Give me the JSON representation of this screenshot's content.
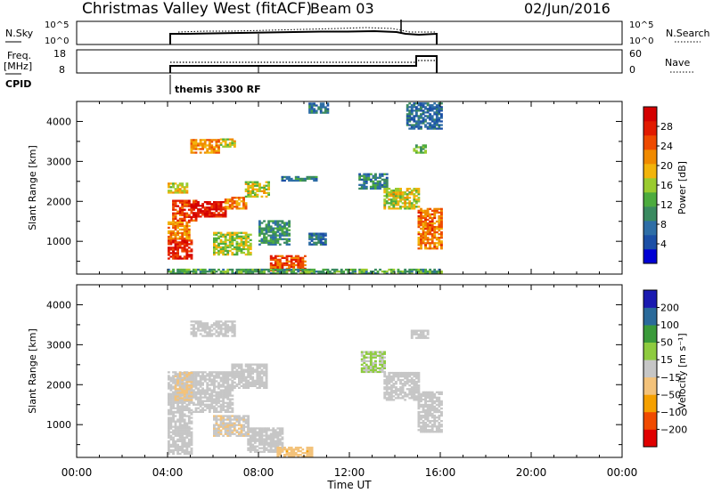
{
  "header": {
    "station": "Christmas Valley West (fitACF)",
    "beam": "Beam 03",
    "date": "02/Jun/2016"
  },
  "top_panels": {
    "nsky_label": "N.Sky",
    "nsky_ticks": [
      "10^5",
      "10^0"
    ],
    "nsearch_label": "N.Search",
    "nsearch_ticks": [
      "10^5",
      "10^0"
    ],
    "freq_label": "Freq.",
    "freq_unit": "[MHz]",
    "freq_ticks": [
      "18",
      "8"
    ],
    "nave_label": "Nave",
    "nave_ticks": [
      "60",
      "0"
    ],
    "cpid_label": "CPID",
    "cpid_value": "themis 3300 RF"
  },
  "chart_data": [
    {
      "type": "heatmap",
      "name": "power",
      "ylabel": "Slant Range [km]",
      "xlim": [
        0,
        24
      ],
      "ylim": [
        180,
        4500
      ],
      "yticks": [
        "4000",
        "3000",
        "2000",
        "1000"
      ],
      "colorbar": {
        "label": "Power [dB]",
        "ticks": [
          "28",
          "24",
          "20",
          "16",
          "12",
          "8",
          "4"
        ],
        "range": [
          0,
          32
        ]
      },
      "regions": [
        {
          "t0": 4.0,
          "t1": 5.0,
          "r0": 550,
          "r1": 1050,
          "v": 28
        },
        {
          "t0": 4.0,
          "t1": 4.9,
          "r0": 1050,
          "r1": 1500,
          "v": 22
        },
        {
          "t0": 4.2,
          "t1": 5.2,
          "r0": 1500,
          "r1": 2000,
          "v": 26
        },
        {
          "t0": 5.0,
          "t1": 6.5,
          "r0": 1600,
          "r1": 2000,
          "v": 29
        },
        {
          "t0": 6.5,
          "t1": 7.4,
          "r0": 1800,
          "r1": 2100,
          "v": 22
        },
        {
          "t0": 7.4,
          "t1": 8.4,
          "r0": 2100,
          "r1": 2500,
          "v": 17
        },
        {
          "t0": 4.0,
          "t1": 4.8,
          "r0": 2200,
          "r1": 2450,
          "v": 18
        },
        {
          "t0": 5.0,
          "t1": 6.2,
          "r0": 3200,
          "r1": 3550,
          "v": 22
        },
        {
          "t0": 6.3,
          "t1": 6.9,
          "r0": 3350,
          "r1": 3550,
          "v": 17
        },
        {
          "t0": 6.0,
          "t1": 7.6,
          "r0": 650,
          "r1": 1200,
          "v": 16
        },
        {
          "t0": 8.0,
          "t1": 9.3,
          "r0": 900,
          "r1": 1500,
          "v": 10
        },
        {
          "t0": 8.5,
          "t1": 10.0,
          "r0": 250,
          "r1": 650,
          "v": 25
        },
        {
          "t0": 9.0,
          "t1": 10.5,
          "r0": 2500,
          "r1": 2600,
          "v": 9
        },
        {
          "t0": 10.2,
          "t1": 10.9,
          "r0": 900,
          "r1": 1200,
          "v": 7
        },
        {
          "t0": 10.2,
          "t1": 11.0,
          "r0": 4200,
          "r1": 4450,
          "v": 8
        },
        {
          "t0": 12.4,
          "t1": 13.6,
          "r0": 2300,
          "r1": 2700,
          "v": 9
        },
        {
          "t0": 13.5,
          "t1": 15.0,
          "r0": 1800,
          "r1": 2300,
          "v": 17
        },
        {
          "t0": 15.0,
          "t1": 16.0,
          "r0": 800,
          "r1": 1800,
          "v": 23
        },
        {
          "t0": 14.8,
          "t1": 15.3,
          "r0": 3200,
          "r1": 3400,
          "v": 13
        },
        {
          "t0": 14.5,
          "t1": 16.0,
          "r0": 3800,
          "r1": 4450,
          "v": 7
        },
        {
          "t0": 4.0,
          "t1": 16.0,
          "r0": 180,
          "r1": 300,
          "v": 12
        }
      ]
    },
    {
      "type": "heatmap",
      "name": "velocity",
      "ylabel": "Slant Range [km]",
      "xlabel": "Time UT",
      "xlim": [
        0,
        24
      ],
      "ylim": [
        180,
        4500
      ],
      "xticks": [
        "00:00",
        "04:00",
        "08:00",
        "12:00",
        "16:00",
        "20:00",
        "00:00"
      ],
      "yticks": [
        "4000",
        "3000",
        "2000",
        "1000"
      ],
      "colorbar": {
        "label": "Velocity [m s⁻¹]",
        "ticks": [
          "200",
          "100",
          "50",
          "15",
          "−15",
          "−50",
          "−100",
          "−200"
        ],
        "range": [
          -250,
          250
        ]
      },
      "regions": [
        {
          "t0": 4.0,
          "t1": 5.0,
          "r0": 250,
          "r1": 1300,
          "v": 0
        },
        {
          "t0": 4.0,
          "t1": 6.8,
          "r0": 1300,
          "r1": 2300,
          "v": 0
        },
        {
          "t0": 4.3,
          "t1": 5.0,
          "r0": 1600,
          "r1": 2300,
          "v": -30
        },
        {
          "t0": 6.8,
          "t1": 8.3,
          "r0": 1900,
          "r1": 2500,
          "v": 0
        },
        {
          "t0": 5.0,
          "t1": 6.9,
          "r0": 3200,
          "r1": 3600,
          "v": 0
        },
        {
          "t0": 6.0,
          "t1": 7.5,
          "r0": 700,
          "r1": 1200,
          "v": -20
        },
        {
          "t0": 7.5,
          "t1": 9.0,
          "r0": 300,
          "r1": 900,
          "v": 0
        },
        {
          "t0": 8.8,
          "t1": 10.3,
          "r0": 180,
          "r1": 450,
          "v": -70
        },
        {
          "t0": 13.5,
          "t1": 15.0,
          "r0": 1600,
          "r1": 2300,
          "v": 0
        },
        {
          "t0": 15.0,
          "t1": 16.0,
          "r0": 800,
          "r1": 1800,
          "v": 0
        },
        {
          "t0": 12.5,
          "t1": 13.5,
          "r0": 2300,
          "r1": 2800,
          "v": 30
        },
        {
          "t0": 14.7,
          "t1": 15.4,
          "r0": 3150,
          "r1": 3350,
          "v": 0
        }
      ]
    }
  ],
  "colors": {
    "power_scale": [
      "#0000d4",
      "#1b4fa6",
      "#2e6ea6",
      "#3a8a60",
      "#4cab3e",
      "#9acb2f",
      "#f2b40b",
      "#f08a00",
      "#ee4a00",
      "#e11a00",
      "#d40000"
    ],
    "velocity_scale": [
      "#e00000",
      "#f04a00",
      "#f5a000",
      "#f3c27a",
      "#c6c6c6",
      "#8ecb3f",
      "#3a9a3a",
      "#2a6a9a",
      "#1a1ab0"
    ]
  }
}
